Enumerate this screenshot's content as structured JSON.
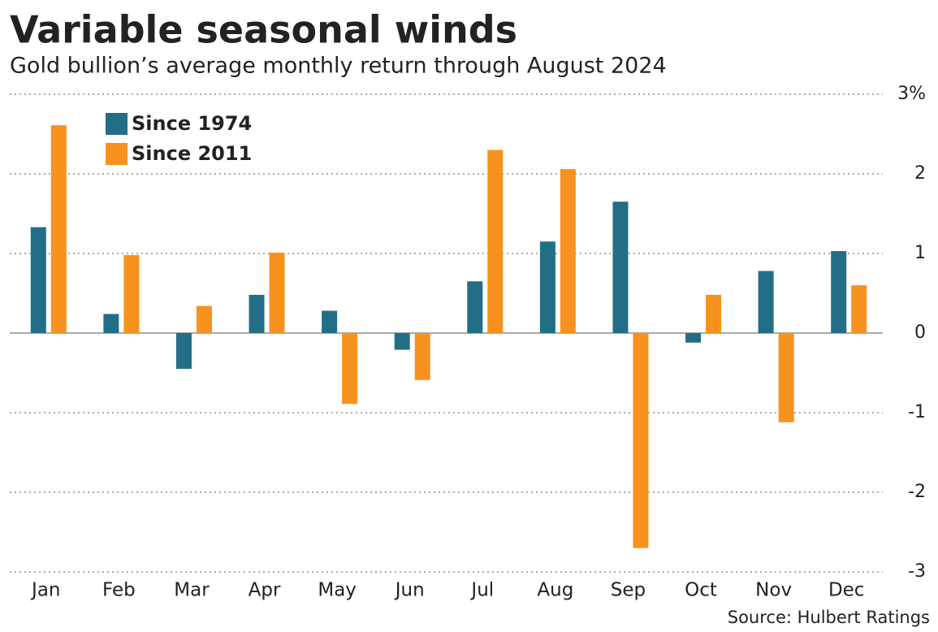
{
  "chart_data": {
    "type": "bar",
    "title": "Variable seasonal winds",
    "subtitle": "Gold bullion’s average monthly return through August 2024",
    "source": "Source: Hulbert Ratings",
    "categories": [
      "Jan",
      "Feb",
      "Mar",
      "Apr",
      "May",
      "Jun",
      "Jul",
      "Aug",
      "Sep",
      "Oct",
      "Nov",
      "Dec"
    ],
    "series": [
      {
        "name": "Since 1974",
        "color": "#236e87",
        "values": [
          1.33,
          0.24,
          -0.45,
          0.48,
          0.28,
          -0.21,
          0.65,
          1.15,
          1.65,
          -0.12,
          0.78,
          1.03
        ]
      },
      {
        "name": "Since 2011",
        "color": "#f7921e",
        "values": [
          2.61,
          0.98,
          0.34,
          1.01,
          -0.89,
          -0.59,
          2.3,
          2.06,
          -2.7,
          0.48,
          -1.12,
          0.6
        ]
      }
    ],
    "ylim": [
      -3,
      3
    ],
    "yticks": [
      -3,
      -2,
      -1,
      0,
      1,
      2,
      {
        "value": 3,
        "label": "3%"
      }
    ],
    "grid": true,
    "legend": "top-left"
  }
}
